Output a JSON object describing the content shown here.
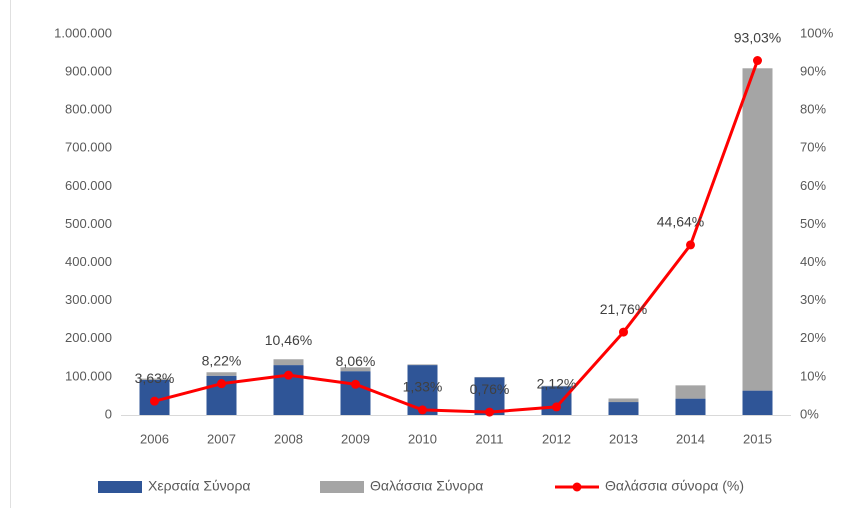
{
  "chart_data": {
    "type": "bar-line",
    "categories": [
      "2006",
      "2007",
      "2008",
      "2009",
      "2010",
      "2011",
      "2012",
      "2013",
      "2014",
      "2015"
    ],
    "series": [
      {
        "name": "Χερσαία Σύνορα",
        "color": "#2f5597",
        "values": [
          92000,
          103000,
          131000,
          115000,
          131000,
          99000,
          75000,
          34000,
          43000,
          64000
        ]
      },
      {
        "name": "Θαλάσσια Σύνορα",
        "color": "#a5a5a5",
        "values": [
          3500,
          9200,
          15300,
          10100,
          1800,
          800,
          1600,
          9400,
          34800,
          846000
        ]
      },
      {
        "name": "Θαλάσσια σύνορα (%)",
        "color": "#ff0000",
        "axis": "y2",
        "values": [
          3.63,
          8.22,
          10.46,
          8.06,
          1.33,
          0.76,
          2.12,
          21.76,
          44.64,
          93.03
        ],
        "value_labels": [
          "3,63%",
          "8,22%",
          "10,46%",
          "8,06%",
          "1,33%",
          "0,76%",
          "2,12%",
          "21,76%",
          "44,64%",
          "93,03%"
        ]
      }
    ],
    "ylim": [
      0,
      1000000
    ],
    "yticks": [
      0,
      {
        "value": 100000,
        "label": "100.000"
      },
      {
        "value": 200000,
        "label": "200.000"
      },
      {
        "value": 300000,
        "label": "300.000"
      },
      {
        "value": 400000,
        "label": "400.000"
      },
      {
        "value": 500000,
        "label": "500.000"
      },
      {
        "value": 600000,
        "label": "600.000"
      },
      {
        "value": 700000,
        "label": "700.000"
      },
      {
        "value": 800000,
        "label": "800.000"
      },
      {
        "value": 900000,
        "label": "900.000"
      },
      {
        "value": 1000000,
        "label": "1.000.000"
      }
    ],
    "y2lim": [
      0,
      100
    ],
    "y2ticks": [
      {
        "value": 0,
        "label": "0%"
      },
      {
        "value": 10,
        "label": "10%"
      },
      {
        "value": 20,
        "label": "20%"
      },
      {
        "value": 30,
        "label": "30%"
      },
      {
        "value": 40,
        "label": "40%"
      },
      {
        "value": 50,
        "label": "50%"
      },
      {
        "value": 60,
        "label": "60%"
      },
      {
        "value": 70,
        "label": "70%"
      },
      {
        "value": 80,
        "label": "80%"
      },
      {
        "value": 90,
        "label": "90%"
      },
      {
        "value": 100,
        "label": "100%"
      }
    ],
    "legend": "bottom"
  }
}
